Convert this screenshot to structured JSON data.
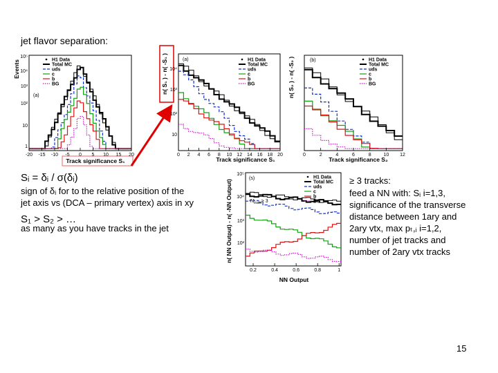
{
  "title": "jet flavor separation:",
  "left_text": [
    "Sᵢ = δᵢ / σ(δᵢ)",
    "sign of δᵢ  for to the relative position of the",
    "jet axis vs (DCA – primary vertex) axis in xy",
    "S₁ > S₂ > …",
    "as many as you have tracks in the jet"
  ],
  "right_text": [
    "≥ 3 tracks:",
    "feed a NN with: Sᵢ i=1,3,",
    "significance of the transverse",
    "distance between 1ary and",
    "2ary vtx, max pₜ,ᵢ i=1,2,",
    "number of jet tracks and",
    "number of 2ary vtx tracks"
  ],
  "page_number": "15",
  "legend": [
    "H1 Data",
    "Total MC",
    "uds",
    "c",
    "b",
    "BG"
  ],
  "plots": [
    {
      "panel": "(a)",
      "y_axis_label": "Events",
      "x_axis_label": "Track significance S₁",
      "x_tick_labels": [
        "-20",
        "-15",
        "-10",
        "-5",
        "0",
        "5",
        "10",
        "15",
        "20"
      ],
      "y_tick_labels": [
        "10⁵",
        "10⁴",
        "10³",
        "10²",
        "10",
        "1"
      ]
    },
    {
      "panel": "(a)",
      "y_axis_label": "n( S₁ ) - n( -S₁ )",
      "x_axis_label": "Track significance S₁",
      "x_tick_labels": [
        "0",
        "2",
        "4",
        "6",
        "8",
        "10",
        "12",
        "14",
        "16",
        "18",
        "20"
      ],
      "y_tick_labels": [
        "10⁴",
        "10³",
        "10²",
        "10"
      ]
    },
    {
      "panel": "(b)",
      "y_axis_label": "n( S₂ ) - n( -S₂ )",
      "x_axis_label": "Track significance S₂",
      "x_tick_labels": [
        "0",
        "2",
        "4",
        "6",
        "8",
        "10",
        "12"
      ],
      "y_tick_labels": []
    },
    {
      "panel": "(s)",
      "y_axis_label": "n( NN Output) - n( -NN Output)",
      "x_axis_label": "NN Output",
      "x_tick_labels": [
        "0.2",
        "0.4",
        "0.6",
        "0.8",
        "1"
      ],
      "y_tick_labels": [
        "10⁵",
        "10⁴",
        "10³",
        "10²"
      ],
      "annotation": [
        "N",
        "track",
        "≥ 3"
      ]
    }
  ]
}
